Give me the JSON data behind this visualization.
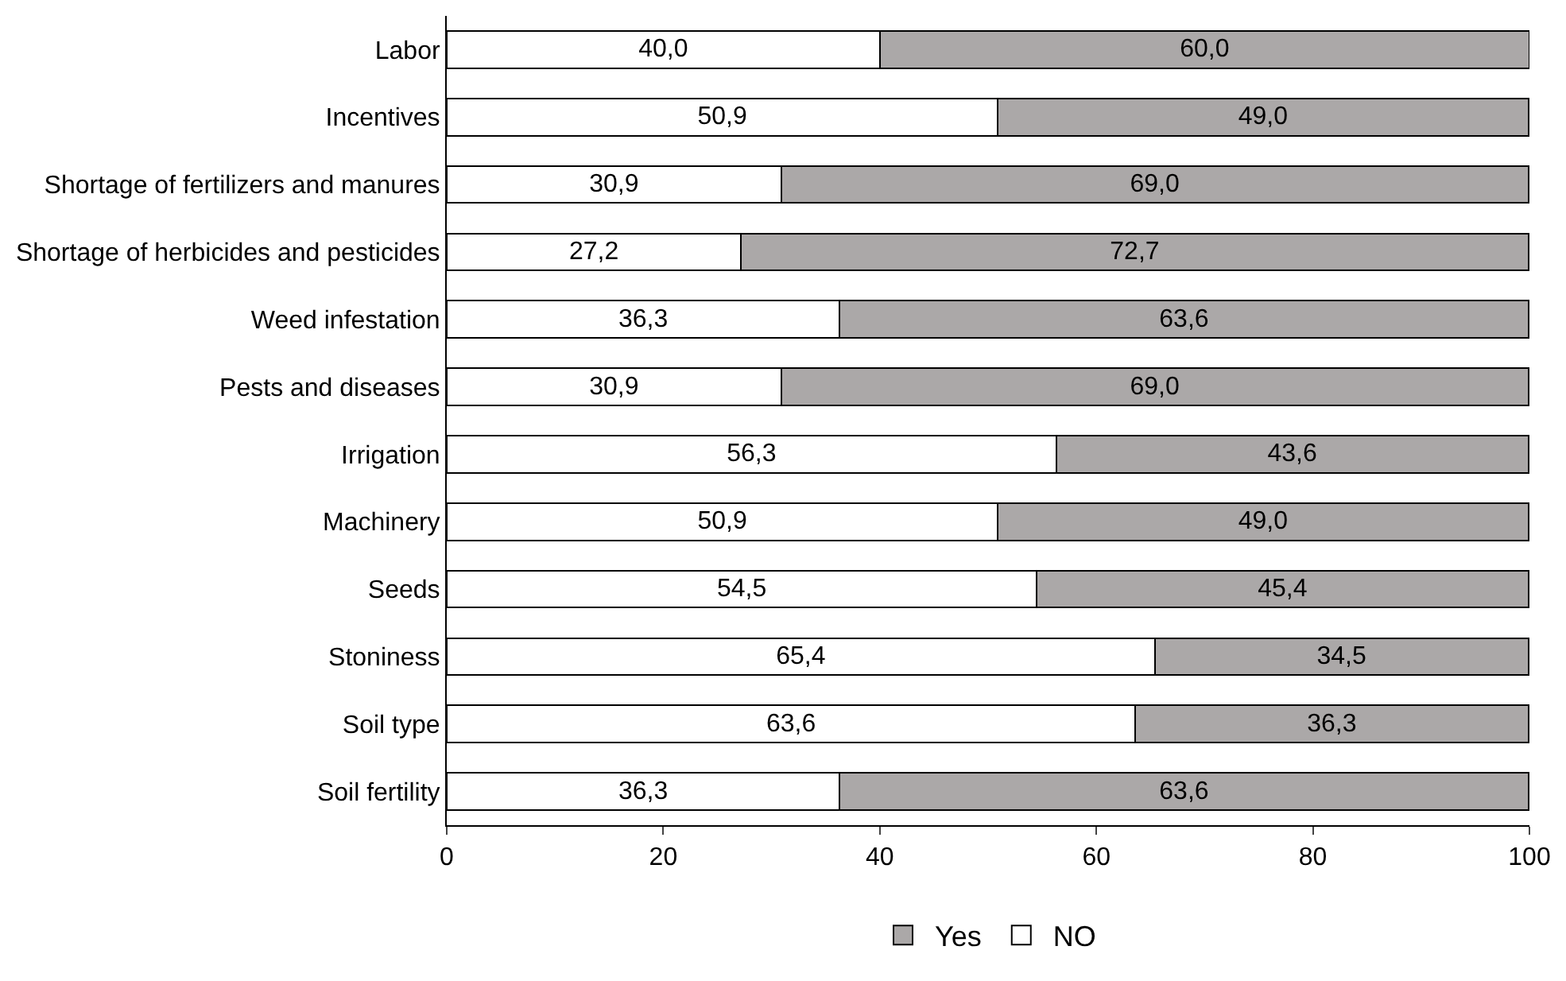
{
  "chart_data": {
    "type": "bar",
    "orientation": "horizontal",
    "stacked": true,
    "categories": [
      "Labor",
      "Incentives",
      "Shortage of fertilizers and manures",
      "Shortage of herbicides and pesticides",
      "Weed infestation",
      "Pests and diseases",
      "Irrigation",
      "Machinery",
      "Seeds",
      "Stoniness",
      "Soil type",
      "Soil fertility"
    ],
    "series": [
      {
        "name": "NO",
        "color": "#ffffff",
        "values": [
          40.0,
          50.9,
          30.9,
          27.2,
          36.3,
          30.9,
          56.3,
          50.9,
          54.5,
          65.4,
          63.6,
          36.3
        ],
        "value_labels": [
          "40,0",
          "50,9",
          "30,9",
          "27,2",
          "36,3",
          "30,9",
          "56,3",
          "50,9",
          "54,5",
          "65,4",
          "63,6",
          "36,3"
        ]
      },
      {
        "name": "Yes",
        "color": "#aba8a8",
        "values": [
          60.0,
          49.0,
          69.0,
          72.7,
          63.6,
          69.0,
          43.6,
          49.0,
          45.4,
          34.5,
          36.3,
          63.6
        ],
        "value_labels": [
          "60,0",
          "49,0",
          "69,0",
          "72,7",
          "63,6",
          "69,0",
          "43,6",
          "49,0",
          "45,4",
          "34,5",
          "36,3",
          "63,6"
        ]
      }
    ],
    "xlim": [
      0,
      100
    ],
    "xticks": [
      0,
      20,
      40,
      60,
      80,
      100
    ],
    "grid": false,
    "legend": "bottom"
  }
}
